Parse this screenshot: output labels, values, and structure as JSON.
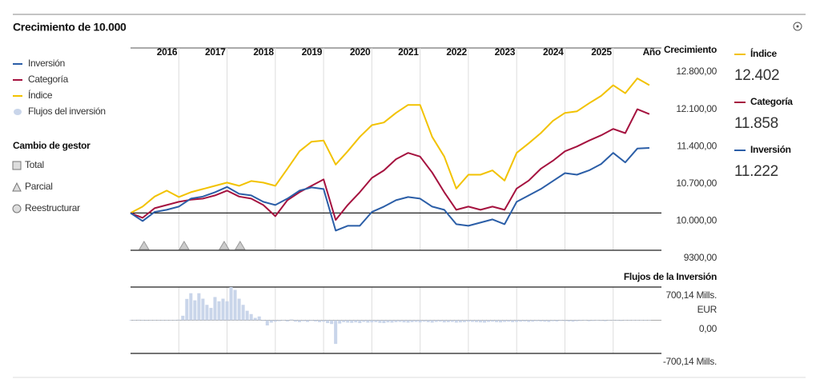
{
  "chart_data": [
    {
      "type": "line",
      "title": "Crecimiento de 10.000",
      "x_axis_label": "Año",
      "y_axis_label": "Crecimiento",
      "x": [
        2015,
        2015.25,
        2015.5,
        2015.75,
        2016,
        2016.25,
        2016.5,
        2016.75,
        2017,
        2017.25,
        2017.5,
        2017.75,
        2018,
        2018.25,
        2018.5,
        2018.75,
        2019,
        2019.25,
        2019.5,
        2019.75,
        2020,
        2020.25,
        2020.5,
        2020.75,
        2021,
        2021.25,
        2021.5,
        2021.75,
        2022,
        2022.25,
        2022.5,
        2022.75,
        2023,
        2023.25,
        2023.5,
        2023.75,
        2024,
        2024.25,
        2024.5,
        2024.75,
        2025,
        2025.25,
        2025.5,
        2025.75
      ],
      "series": [
        {
          "name": "Índice",
          "color": "#f2c200",
          "latest_label": "12.402",
          "values": [
            10000,
            10120,
            10310,
            10420,
            10300,
            10390,
            10450,
            10510,
            10570,
            10510,
            10600,
            10570,
            10510,
            10830,
            11160,
            11340,
            11360,
            10910,
            11160,
            11430,
            11650,
            11700,
            11880,
            12030,
            12030,
            11430,
            11060,
            10460,
            10720,
            10720,
            10800,
            10610,
            11130,
            11310,
            11500,
            11730,
            11880,
            11910,
            12060,
            12200,
            12400,
            12250,
            12530,
            12402
          ]
        },
        {
          "name": "Categoría",
          "color": "#a5123f",
          "latest_label": "11.858",
          "values": [
            10000,
            9910,
            10090,
            10150,
            10210,
            10250,
            10270,
            10330,
            10420,
            10310,
            10270,
            10150,
            9940,
            10240,
            10390,
            10510,
            10630,
            9870,
            10150,
            10390,
            10660,
            10800,
            11010,
            11130,
            11060,
            10760,
            10390,
            10060,
            10120,
            10060,
            10120,
            10060,
            10460,
            10610,
            10830,
            10980,
            11160,
            11250,
            11360,
            11460,
            11580,
            11500,
            11950,
            11858
          ]
        },
        {
          "name": "Inversión",
          "color": "#2b5ea7",
          "latest_label": "11.222",
          "values": [
            10000,
            9850,
            10020,
            10060,
            10120,
            10270,
            10310,
            10390,
            10490,
            10360,
            10330,
            10210,
            10150,
            10270,
            10420,
            10480,
            10450,
            9670,
            9760,
            9760,
            10020,
            10120,
            10240,
            10300,
            10270,
            10120,
            10060,
            9790,
            9760,
            9820,
            9880,
            9790,
            10210,
            10330,
            10450,
            10600,
            10750,
            10720,
            10800,
            10920,
            11130,
            10950,
            11210,
            11222
          ]
        }
      ],
      "xlim": [
        2015,
        2026
      ],
      "xticks": [
        {
          "value": 2016,
          "label": "2016"
        },
        {
          "value": 2017,
          "label": "2017"
        },
        {
          "value": 2018,
          "label": "2018"
        },
        {
          "value": 2019,
          "label": "2019"
        },
        {
          "value": 2020,
          "label": "2020"
        },
        {
          "value": 2021,
          "label": "2021"
        },
        {
          "value": 2022,
          "label": "2022"
        },
        {
          "value": 2023,
          "label": "2023"
        },
        {
          "value": 2024,
          "label": "2024"
        },
        {
          "value": 2025,
          "label": "2025"
        }
      ],
      "ylim": [
        9300,
        13100
      ],
      "yticks": [
        {
          "value": 12800,
          "label": "12.800,00"
        },
        {
          "value": 12100,
          "label": "12.100,00"
        },
        {
          "value": 11400,
          "label": "11.400,00"
        },
        {
          "value": 10700,
          "label": "10.700,00"
        },
        {
          "value": 10000,
          "label": "10.000,00"
        },
        {
          "value": 9300,
          "label": "9300,00"
        }
      ],
      "baseline": 10000,
      "grid": "x",
      "legend": {
        "items": [
          "Inversión",
          "Categoría",
          "Índice",
          "Flujos del inversión"
        ],
        "colors": [
          "#2b5ea7",
          "#a5123f",
          "#f2c200",
          "#c9d5ea"
        ]
      },
      "manager_change": {
        "title": "Cambio de gestor",
        "kinds": [
          "Total",
          "Parcial",
          "Reestructurar"
        ],
        "partial": [
          2015.28,
          2016.11,
          2016.94,
          2017.27
        ]
      }
    },
    {
      "type": "bar",
      "title": "Flujos de la Inversión",
      "color": "#c9d5ea",
      "x_start": 2015,
      "x_step": 0.08333,
      "values": [
        5,
        -8,
        10,
        4,
        -12,
        6,
        3,
        -5,
        8,
        2,
        -6,
        4,
        12,
        95,
        450,
        570,
        420,
        570,
        455,
        325,
        260,
        490,
        400,
        455,
        400,
        700,
        640,
        455,
        325,
        200,
        130,
        50,
        80,
        -15,
        -110,
        -50,
        -30,
        -20,
        -10,
        -25,
        15,
        -30,
        -40,
        -20,
        -35,
        -15,
        -25,
        -40,
        -30,
        -60,
        -80,
        -500,
        -70,
        -40,
        -50,
        -55,
        -45,
        -60,
        -35,
        -50,
        -45,
        -40,
        -55,
        -60,
        -45,
        -50,
        -40,
        -35,
        -45,
        -50,
        -40,
        -35,
        -45,
        -30,
        -40,
        -50,
        -35,
        -30,
        -45,
        -40,
        -35,
        -50,
        -45,
        -40,
        -30,
        -35,
        -40,
        -45,
        -50,
        -35,
        -30,
        -40,
        -45,
        -35,
        -30,
        -40,
        -35,
        -30,
        -25,
        -35,
        -30,
        -20,
        -25,
        -30,
        -35,
        -20,
        -25,
        -15,
        -20,
        -25,
        -30,
        -20,
        -15,
        -10,
        -20,
        -15,
        -10,
        -15,
        -20,
        -10,
        -5,
        -10,
        -15,
        -5,
        -10,
        -5,
        5,
        -5,
        -10,
        -5
      ],
      "ylim": [
        -700.14,
        700.14
      ],
      "yticks": [
        {
          "value": 700.14,
          "label": "700,14 Mills. EUR"
        },
        {
          "value": 0,
          "label": "0,00"
        },
        {
          "value": -700.14,
          "label": "-700,14 Mills."
        }
      ]
    }
  ]
}
